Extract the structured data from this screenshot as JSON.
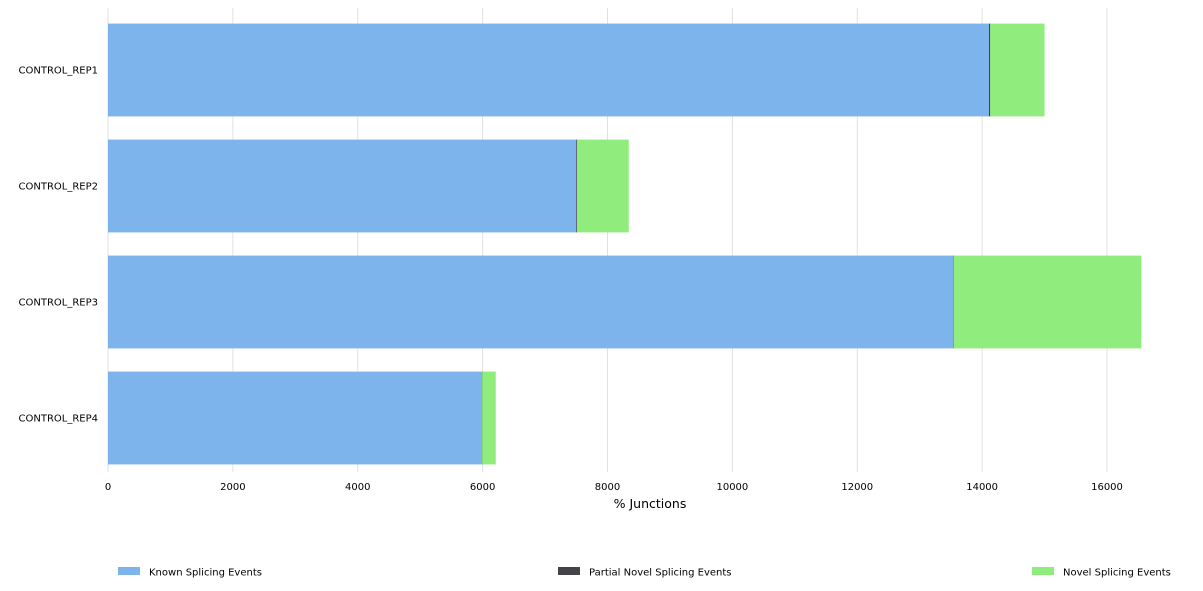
{
  "chart_data": {
    "type": "bar",
    "orientation": "horizontal",
    "stacked": true,
    "categories": [
      "CONTROL_REP1",
      "CONTROL_REP2",
      "CONTROL_REP3",
      "CONTROL_REP4"
    ],
    "series": [
      {
        "name": "Known Splicing Events",
        "color": "#7cb4eb",
        "values": [
          14110,
          7500,
          13540,
          5990
        ]
      },
      {
        "name": "Partial Novel Splicing Events",
        "color": "#434348",
        "values": [
          20,
          15,
          5,
          2
        ]
      },
      {
        "name": "Novel Splicing Events",
        "color": "#90ed7d",
        "values": [
          870,
          825,
          3005,
          218
        ]
      }
    ],
    "xlabel": "% Junctions",
    "ylabel": "",
    "xlim": [
      0,
      16500
    ],
    "xticks": [
      0,
      2000,
      4000,
      6000,
      8000,
      10000,
      12000,
      14000,
      16000
    ],
    "grid": "vertical",
    "legend_position": "bottom"
  }
}
